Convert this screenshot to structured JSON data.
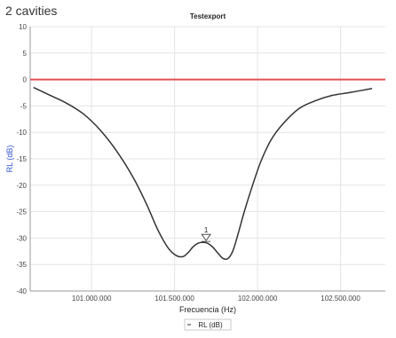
{
  "header": {
    "label": "2 cavities"
  },
  "chart_data": {
    "type": "line",
    "title": "Testexport",
    "xlabel": "Frecuencia (Hz)",
    "ylabel": "RL (dB)",
    "xlim": [
      100630000,
      102770000
    ],
    "ylim": [
      -40,
      10
    ],
    "x_ticks": [
      101000000,
      101500000,
      102000000,
      102500000
    ],
    "x_tick_labels": [
      "101.000.000",
      "101.500.000",
      "102.000.000",
      "102.500.000"
    ],
    "y_ticks": [
      10,
      5,
      0,
      -5,
      -10,
      -15,
      -20,
      -25,
      -30,
      -35,
      -40
    ],
    "y_tick_labels": [
      "10",
      "5",
      "0",
      "-5",
      "-10",
      "-15",
      "-20",
      "-25",
      "-30",
      "-35",
      "-40"
    ],
    "grid": true,
    "legend_position": "bottom-center",
    "reference_line": {
      "y": 0,
      "color": "#e05050"
    },
    "series": [
      {
        "name": "RL (dB)",
        "color": "#333333",
        "x": [
          100650000,
          100750000,
          100850000,
          100950000,
          101050000,
          101150000,
          101250000,
          101330000,
          101400000,
          101460000,
          101510000,
          101550000,
          101580000,
          101610000,
          101640000,
          101670000,
          101700000,
          101730000,
          101760000,
          101790000,
          101820000,
          101850000,
          101880000,
          101920000,
          101970000,
          102020000,
          102080000,
          102150000,
          102250000,
          102350000,
          102450000,
          102550000,
          102690000
        ],
        "y": [
          -1.5,
          -3,
          -4.5,
          -6.5,
          -9.5,
          -13.5,
          -18.5,
          -23.5,
          -28.5,
          -31.8,
          -33.3,
          -33.5,
          -32.8,
          -31.7,
          -31,
          -30.8,
          -31,
          -31.7,
          -32.8,
          -33.8,
          -33.9,
          -32.5,
          -29.5,
          -25,
          -20,
          -15.5,
          -11.5,
          -8.5,
          -5.5,
          -4,
          -3,
          -2.5,
          -1.7
        ]
      }
    ],
    "markers": [
      {
        "label": "1",
        "x": 101690000,
        "y": -30.8
      }
    ]
  }
}
